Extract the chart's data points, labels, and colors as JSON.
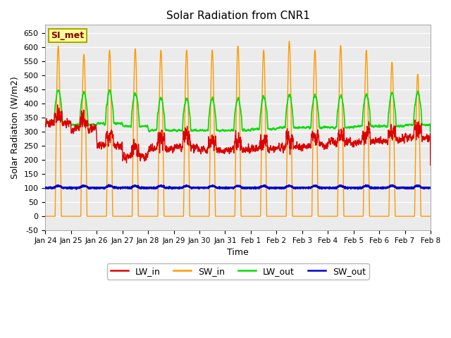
{
  "title": "Solar Radiation from CNR1",
  "xlabel": "Time",
  "ylabel": "Solar Radiation (W/m2)",
  "ylim": [
    -50,
    680
  ],
  "legend_labels": [
    "LW_in",
    "SW_in",
    "LW_out",
    "SW_out"
  ],
  "legend_colors": [
    "#dd0000",
    "#ff9900",
    "#00dd00",
    "#0000cc"
  ],
  "annotation_text": "SI_met",
  "annotation_color": "#880000",
  "annotation_bg": "#ffff99",
  "annotation_border": "#aaaa00",
  "bg_color": "#ebebeb",
  "line_width": 1.0,
  "xtick_labels": [
    "Jan 24",
    "Jan 25",
    "Jan 26",
    "Jan 27",
    "Jan 28",
    "Jan 29",
    "Jan 30",
    "Jan 31",
    "Feb 1",
    "Feb 2",
    "Feb 3",
    "Feb 4",
    "Feb 5",
    "Feb 6",
    "Feb 7",
    "Feb 8"
  ],
  "days": 15,
  "num_points": 4320
}
